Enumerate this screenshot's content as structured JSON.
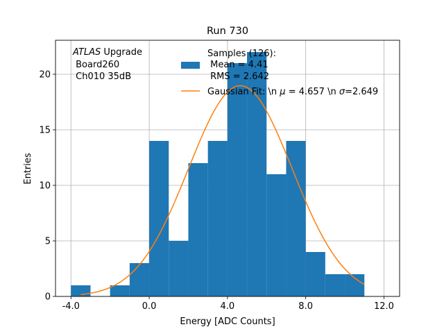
{
  "chart_data": {
    "type": "bar",
    "title": "Run 730",
    "xlabel": "Energy [ADC Counts]",
    "ylabel": "Entries",
    "xlim": [
      -4.79,
      12.8
    ],
    "ylim": [
      0,
      23.06
    ],
    "grid": true,
    "xticks": [
      -4.0,
      0.0,
      4.0,
      8.0,
      12.0
    ],
    "xtick_labels": [
      "-4.0",
      "0.0",
      "4.0",
      "8.0",
      "12.0"
    ],
    "yticks": [
      0,
      5,
      10,
      15,
      20
    ],
    "ytick_labels": [
      "0",
      "5",
      "10",
      "15",
      "20"
    ],
    "bin_edges": [
      -4,
      -3,
      -2,
      -1,
      0,
      1,
      2,
      3,
      4,
      5,
      6,
      7,
      8,
      9,
      10,
      11
    ],
    "values": [
      1,
      0,
      1,
      3,
      14,
      5,
      12,
      14,
      21,
      22,
      11,
      14,
      4,
      2,
      2
    ],
    "bar_color": "#1f77b4",
    "fit": {
      "type": "gaussian",
      "mu": 4.657,
      "sigma": 2.649,
      "amplitude": 18.97,
      "range": [
        -3.5,
        11.0
      ],
      "color": "#ff7f0e"
    },
    "annotation": {
      "italic": "ATLAS",
      "rest": " Upgrade",
      "line2": " Board260",
      "line3": " Ch010 35dB"
    },
    "legend": {
      "placement": "top-right",
      "hist_lines": [
        "Samples (126):",
        " Mean = 4.41",
        " RMS = 2.642"
      ],
      "fit_label_parts": [
        "Gaussian Fit: \\n ",
        "μ",
        " = 4.657 \\n ",
        "σ",
        "=2.649"
      ]
    }
  }
}
